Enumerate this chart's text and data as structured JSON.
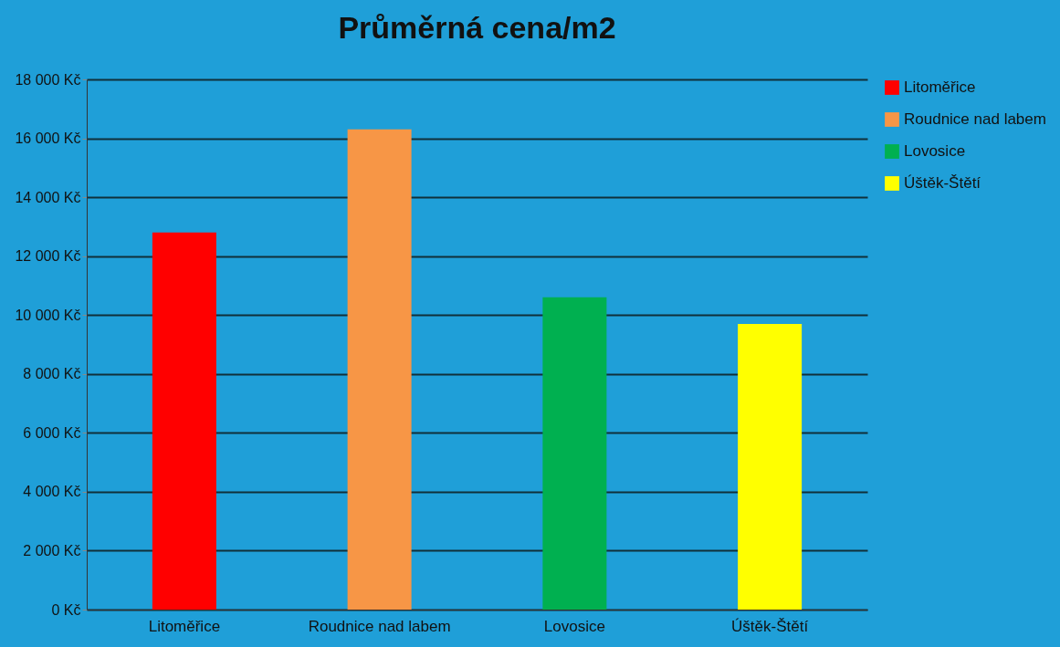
{
  "chart_data": {
    "type": "bar",
    "title": "Průměrná cena/m2",
    "categories": [
      "Litoměřice",
      "Roudnice nad labem",
      "Lovosice",
      "Úštěk-Štětí"
    ],
    "series": [
      {
        "name": "Litoměřice",
        "color": "#ff0000",
        "values": [
          12800,
          null,
          null,
          null
        ]
      },
      {
        "name": "Roudnice nad labem",
        "color": "#f79646",
        "values": [
          null,
          16300,
          null,
          null
        ]
      },
      {
        "name": "Lovosice",
        "color": "#00b050",
        "values": [
          null,
          null,
          10600,
          null
        ]
      },
      {
        "name": "Úštěk-Štětí",
        "color": "#ffff00",
        "values": [
          null,
          null,
          null,
          9700
        ]
      }
    ],
    "ylim": [
      0,
      18000
    ],
    "yticks": [
      {
        "value": 0,
        "label": "0 Kč"
      },
      {
        "value": 2000,
        "label": "2 000 Kč"
      },
      {
        "value": 4000,
        "label": "4 000 Kč"
      },
      {
        "value": 6000,
        "label": "6 000 Kč"
      },
      {
        "value": 8000,
        "label": "8 000 Kč"
      },
      {
        "value": 10000,
        "label": "10 000 Kč"
      },
      {
        "value": 12000,
        "label": "12 000 Kč"
      },
      {
        "value": 14000,
        "label": "14 000 Kč"
      },
      {
        "value": 16000,
        "label": "16 000 Kč"
      },
      {
        "value": 18000,
        "label": "18 000 Kč"
      }
    ],
    "grid": "y",
    "legend": "right"
  }
}
